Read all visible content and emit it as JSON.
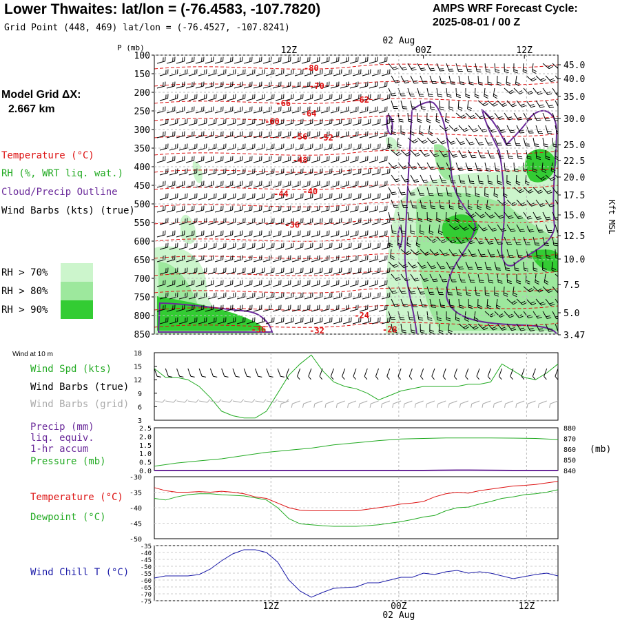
{
  "header": {
    "title": "Lower Thwaites:  lat/lon = (-76.4583, -107.7820)",
    "grid_point": "Grid Point (448, 469) lat/lon = (-76.4527, -107.8241)",
    "cycle_line1": "AMPS WRF Forecast Cycle:",
    "cycle_line2": "2025-08-01 / 00  Z"
  },
  "left_panel": {
    "model_grid_line1": "Model Grid ΔX:",
    "model_grid_line2": "2.667 km",
    "legend_temperature": "Temperature (°C)",
    "legend_rh": "RH (%, WRT liq. wat.)",
    "legend_cloud": "Cloud/Precip Outline",
    "legend_wind": "Wind Barbs (kts) (true)",
    "rh70": "RH > 70%",
    "rh80": "RH > 80%",
    "rh90": "RH > 90%",
    "wind10m": "Wind at 10 m",
    "wind_spd": "Wind Spd (kts)",
    "wind_barbs_true": "Wind Barbs (true)",
    "wind_barbs_grid": "Wind Barbs (grid)",
    "precip_line1": "Precip (mm)",
    "precip_line2": "liq. equiv.",
    "precip_line3": "1-hr accum",
    "pressure": "Pressure (mb)",
    "temperature": "Temperature (°C)",
    "dewpoint": "Dewpoint (°C)",
    "wind_chill": "Wind Chill T (°C)"
  },
  "colors": {
    "temperature": "#dd1111",
    "rh_text": "#22aa22",
    "cloud": "#6a2a9a",
    "rh70": "#ccf5cc",
    "rh80": "#9de89d",
    "rh90": "#33cc33",
    "windchill": "#1a1aa8",
    "grid_barbs": "#aaaaaa"
  },
  "chart_data": [
    {
      "type": "heatmap",
      "panel": "cross-section",
      "ylabel": "P (mb)",
      "right_label": "Kft MSL",
      "top_time_labels": [
        "12Z",
        "00Z",
        "12Z"
      ],
      "top_date_label": "02 Aug",
      "y_ticks": [
        "100",
        "150",
        "200",
        "250",
        "300",
        "350",
        "400",
        "450",
        "500",
        "550",
        "600",
        "650",
        "700",
        "750",
        "800",
        "850"
      ],
      "kft_ticks": [
        "45.0",
        "40.0",
        "35.0",
        "30.0",
        "25.0",
        "22.5",
        "20.0",
        "17.5",
        "15.0",
        "12.5",
        "10.0",
        "7.5",
        "5.0",
        "3.47"
      ],
      "temperature_labels": [
        {
          "text": "-80",
          "hour": 14.0,
          "p": 143
        },
        {
          "text": "-70",
          "hour": 14.5,
          "p": 191
        },
        {
          "text": "-66",
          "hour": 11.5,
          "p": 237
        },
        {
          "text": "-62",
          "hour": 18.5,
          "p": 228
        },
        {
          "text": "-64",
          "hour": 13.8,
          "p": 265
        },
        {
          "text": "-60",
          "hour": 10.5,
          "p": 286
        },
        {
          "text": "-56",
          "hour": 13.0,
          "p": 327
        },
        {
          "text": "-52",
          "hour": 15.3,
          "p": 330
        },
        {
          "text": "-48",
          "hour": 13.0,
          "p": 390
        },
        {
          "text": "-44",
          "hour": 11.3,
          "p": 481
        },
        {
          "text": "-40",
          "hour": 13.9,
          "p": 474
        },
        {
          "text": "-36",
          "hour": 12.3,
          "p": 564
        },
        {
          "text": "-36",
          "hour": 9.3,
          "p": 845
        },
        {
          "text": "-32",
          "hour": 14.5,
          "p": 848
        },
        {
          "text": "-24",
          "hour": 18.5,
          "p": 807
        },
        {
          "text": "-28",
          "hour": 21.0,
          "p": 845
        }
      ]
    },
    {
      "type": "line",
      "panel": "wind",
      "ylim": [
        3,
        18
      ],
      "y_ticks": [
        3,
        6,
        9,
        12,
        15,
        18
      ],
      "series": [
        {
          "name": "Wind Spd (kts)",
          "x": [
            0,
            1,
            2,
            3,
            4,
            5,
            6,
            7,
            8,
            9,
            10,
            11,
            12,
            13,
            14,
            15,
            16,
            17,
            18,
            19,
            20,
            21,
            22,
            23,
            24,
            25,
            26,
            27,
            28,
            29,
            30,
            31,
            32,
            33,
            34,
            35,
            36
          ],
          "values": [
            14.5,
            12.5,
            12.5,
            12,
            10.5,
            8,
            5,
            4,
            3.5,
            3.5,
            5,
            9,
            13,
            15.5,
            17.5,
            14,
            11.5,
            10.5,
            10,
            9,
            7.5,
            8.5,
            9.5,
            10,
            10.5,
            10.5,
            10.5,
            10.5,
            11,
            11,
            11.5,
            15.5,
            14,
            12.5,
            12,
            13.5,
            15.5
          ]
        }
      ]
    },
    {
      "type": "line",
      "panel": "precip-pressure",
      "ylim": [
        0,
        2.5
      ],
      "y_ticks": [
        "0.0",
        "0.5",
        "1.0",
        "1.5",
        "2.0",
        "2.5"
      ],
      "y2lim": [
        840,
        880
      ],
      "y2_ticks": [
        "840",
        "850",
        "860",
        "870",
        "880"
      ],
      "y2_unit": "(mb)",
      "series": [
        {
          "name": "Pressure (mb)",
          "x": [
            0,
            2,
            4,
            6,
            8,
            10,
            12,
            14,
            16,
            18,
            20,
            22,
            24,
            26,
            28,
            30,
            32,
            34,
            36
          ],
          "values": [
            844,
            847,
            849,
            851,
            854,
            857,
            859,
            861,
            864,
            866,
            868,
            869.5,
            870,
            870.5,
            870.5,
            870.5,
            870.3,
            870,
            869
          ]
        },
        {
          "name": "Precip (mm)",
          "x": [
            0,
            6,
            12,
            18,
            24,
            27,
            28,
            32,
            36
          ],
          "values": [
            0,
            0,
            0,
            0,
            0,
            0.02,
            0.02,
            0,
            0
          ]
        }
      ]
    },
    {
      "type": "line",
      "panel": "temperature",
      "ylim": [
        -50,
        -30
      ],
      "y_ticks": [
        -50,
        -45,
        -40,
        -35,
        -30
      ],
      "series": [
        {
          "name": "Temperature (°C)",
          "x": [
            0,
            1,
            2,
            3,
            4,
            5,
            6,
            7,
            8,
            9,
            10,
            11,
            12,
            13,
            14,
            15,
            16,
            17,
            18,
            19,
            20,
            21,
            22,
            23,
            24,
            25,
            26,
            27,
            28,
            29,
            30,
            31,
            32,
            33,
            34,
            35,
            36
          ],
          "values": [
            -33.5,
            -34.5,
            -35,
            -35,
            -34.8,
            -35,
            -34.7,
            -35,
            -35.5,
            -36.5,
            -37,
            -38.5,
            -40,
            -40.8,
            -41,
            -41,
            -41,
            -41,
            -41,
            -40.5,
            -40,
            -39.5,
            -38.8,
            -38.5,
            -38,
            -36.5,
            -35.5,
            -35,
            -35.3,
            -34.5,
            -34,
            -33.5,
            -33,
            -32.8,
            -32.5,
            -32,
            -31.5
          ]
        },
        {
          "name": "Dewpoint (°C)",
          "x": [
            0,
            1,
            2,
            3,
            4,
            5,
            6,
            7,
            8,
            9,
            10,
            11,
            12,
            13,
            14,
            15,
            16,
            17,
            18,
            19,
            20,
            21,
            22,
            23,
            24,
            25,
            26,
            27,
            28,
            29,
            30,
            31,
            32,
            33,
            34,
            35,
            36
          ],
          "values": [
            -37,
            -37.5,
            -36.5,
            -35.8,
            -35.5,
            -35.5,
            -35.8,
            -36,
            -36.2,
            -36.8,
            -37.5,
            -40,
            -43.5,
            -45.2,
            -45.5,
            -45.8,
            -46,
            -46,
            -46,
            -45.8,
            -45.5,
            -45,
            -44.5,
            -43.8,
            -43,
            -42.5,
            -41,
            -40,
            -39.8,
            -38.8,
            -38,
            -37,
            -36.5,
            -35.8,
            -35.5,
            -35,
            -34.2
          ]
        }
      ]
    },
    {
      "type": "line",
      "panel": "wind-chill",
      "ylim": [
        -75,
        -35
      ],
      "y_ticks": [
        -35,
        -40,
        -45,
        -50,
        -55,
        -60,
        -65,
        -70,
        -75
      ],
      "bottom_time_labels": [
        "12Z",
        "00Z",
        "12Z"
      ],
      "bottom_date_label": "02 Aug",
      "series": [
        {
          "name": "Wind Chill T (°C)",
          "x": [
            0,
            1,
            2,
            3,
            4,
            5,
            6,
            7,
            8,
            9,
            10,
            11,
            12,
            13,
            14,
            15,
            16,
            17,
            18,
            19,
            20,
            21,
            22,
            23,
            24,
            25,
            26,
            27,
            28,
            29,
            30,
            31,
            32,
            33,
            34,
            35,
            36
          ],
          "values": [
            -58.5,
            -57,
            -57,
            -57,
            -56,
            -52,
            -46,
            -41,
            -38,
            -38,
            -40,
            -47,
            -60,
            -68,
            -72.5,
            -69,
            -66,
            -65.5,
            -65,
            -62,
            -62,
            -60,
            -58,
            -58,
            -55,
            -56,
            -54,
            -53,
            -55,
            -54,
            -55,
            -57,
            -59,
            -57.5,
            -56,
            -55,
            -57
          ]
        }
      ]
    }
  ]
}
